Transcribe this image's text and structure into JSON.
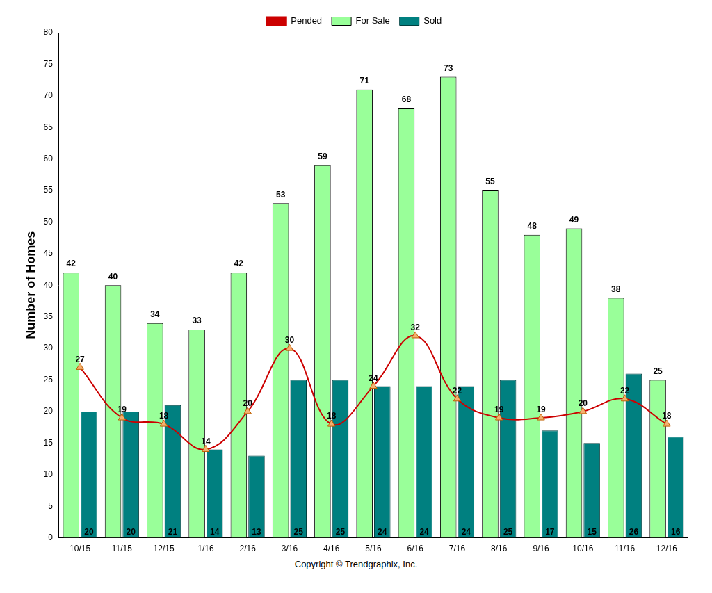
{
  "chart_data": {
    "type": "bar",
    "y_label": "Number of Homes",
    "annotations": [
      "Copyright © Trendgraphix, Inc."
    ],
    "categories": [
      "10/15",
      "11/15",
      "12/15",
      "1/16",
      "2/16",
      "3/16",
      "4/16",
      "5/16",
      "6/16",
      "7/16",
      "8/16",
      "9/16",
      "10/16",
      "11/16",
      "12/16"
    ],
    "series": [
      {
        "name": "For Sale",
        "type": "bar",
        "color": "#99ff99",
        "values": [
          42,
          40,
          34,
          33,
          42,
          53,
          59,
          71,
          68,
          73,
          55,
          48,
          49,
          38,
          25
        ]
      },
      {
        "name": "Sold",
        "type": "bar",
        "color": "#008080",
        "values": [
          20,
          20,
          21,
          14,
          13,
          25,
          25,
          24,
          24,
          24,
          25,
          17,
          15,
          26,
          16
        ]
      },
      {
        "name": "Pended",
        "type": "line",
        "color": "#cc0000",
        "marker": "triangle",
        "values": [
          27,
          19,
          18,
          14,
          20,
          30,
          18,
          24,
          32,
          22,
          19,
          19,
          20,
          22,
          18
        ]
      }
    ],
    "ylim": [
      0,
      80
    ],
    "yticks": [
      0,
      5,
      10,
      15,
      20,
      25,
      30,
      35,
      40,
      45,
      50,
      55,
      60,
      65,
      70,
      75,
      80
    ],
    "grid": false,
    "legend": "top",
    "data_labels": true
  }
}
